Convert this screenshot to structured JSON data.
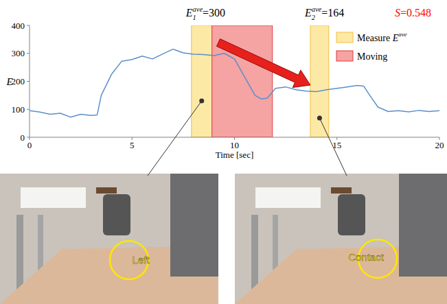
{
  "chart_data": {
    "type": "line",
    "x_label": "Time [sec]",
    "y_label": "E",
    "xlim": [
      0,
      20
    ],
    "xticks": [
      0,
      5,
      10,
      15,
      20
    ],
    "ylim": [
      0,
      400
    ],
    "yticks": [
      0,
      100,
      200,
      300,
      400
    ],
    "grid": false,
    "legend": "top-right",
    "x": [
      0,
      0.5,
      1,
      1.5,
      2,
      2.5,
      3,
      3.3,
      3.5,
      4,
      4.5,
      5,
      5.5,
      6,
      6.5,
      7,
      7.5,
      8,
      8.5,
      9,
      9.5,
      10,
      10.5,
      11,
      11.3,
      11.6,
      12,
      12.5,
      13,
      13.5,
      14,
      14.5,
      15,
      15.5,
      16,
      16.3,
      16.6,
      17,
      17.5,
      18,
      18.5,
      19,
      19.5,
      20
    ],
    "series": [
      {
        "color": "#5b8fc9",
        "values": [
          95,
          90,
          82,
          86,
          72,
          82,
          78,
          80,
          150,
          225,
          272,
          278,
          290,
          280,
          298,
          315,
          302,
          297,
          296,
          292,
          300,
          280,
          215,
          150,
          137,
          140,
          175,
          180,
          170,
          165,
          163,
          170,
          175,
          180,
          185,
          183,
          150,
          108,
          92,
          95,
          91,
          96,
          92,
          95
        ]
      }
    ],
    "legend_items": [
      {
        "text": "Measure ",
        "symbol": "E",
        "sup": "ave",
        "color": "#fde9a6",
        "ranges": [
          [
            7.9,
            8.9
          ],
          [
            13.7,
            14.6
          ]
        ]
      },
      {
        "text": "Moving",
        "color": "#f5a3a3",
        "ranges": [
          [
            8.9,
            11.85
          ]
        ]
      }
    ],
    "annotations": [
      {
        "base": "E",
        "sub": "1",
        "sup": "ave",
        "rest": "=300"
      },
      {
        "base": "E",
        "sub": "2",
        "sup": "ave",
        "rest": "=164"
      }
    ],
    "score": {
      "base": "S",
      "rest": "=0.548",
      "color": "#ff0000"
    }
  },
  "photos": [
    {
      "label": "Left"
    },
    {
      "label": "Contact"
    }
  ]
}
